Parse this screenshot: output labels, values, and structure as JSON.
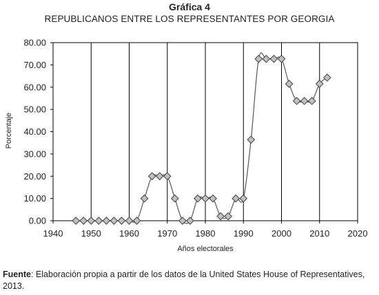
{
  "header": {
    "title": "Gráfica 4",
    "subtitle": "REPUBLICANOS ENTRE LOS REPRESENTANTES POR GEORGIA"
  },
  "footer": {
    "source_label": "Fuente",
    "source_text": ": Elaboración propia a partir de los datos de la United States House of Representatives, 2013."
  },
  "chart_data": {
    "type": "scatter",
    "title": "Gráfica 4",
    "subtitle": "REPUBLICANOS ENTRE LOS REPRESENTANTES POR GEORGIA",
    "xlabel": "Años electorales",
    "ylabel": "Porcentaje",
    "xlim": [
      1940,
      2020
    ],
    "ylim": [
      0,
      80
    ],
    "x_ticks": [
      1940,
      1950,
      1960,
      1970,
      1980,
      1990,
      2000,
      2010,
      2020
    ],
    "y_ticks": [
      0,
      10,
      20,
      30,
      40,
      50,
      60,
      70,
      80
    ],
    "y_tick_labels": [
      "0.00",
      "10.00",
      "20.00",
      "30.00",
      "40.00",
      "50.00",
      "60.00",
      "70.00",
      "80.00"
    ],
    "grid": "vertical",
    "legend": "none",
    "smoothed_line": true,
    "marker": "diamond",
    "marker_color": "#c0c0c0",
    "line_color": "#555555",
    "x": [
      1946,
      1948,
      1950,
      1952,
      1954,
      1956,
      1958,
      1960,
      1962,
      1964,
      1966,
      1968,
      1970,
      1972,
      1974,
      1976,
      1978,
      1980,
      1982,
      1984,
      1986,
      1988,
      1990,
      1992,
      1994,
      1996,
      1998,
      2000,
      2002,
      2004,
      2006,
      2008,
      2010,
      2012
    ],
    "y": [
      0,
      0,
      0,
      0,
      0,
      0,
      0,
      0,
      0,
      10,
      20,
      20,
      20,
      10,
      0,
      0,
      10,
      10,
      10,
      2,
      2,
      10,
      10,
      36.4,
      72.7,
      72.7,
      72.7,
      72.7,
      61.5,
      53.8,
      53.8,
      53.8,
      61.5,
      64.3
    ]
  }
}
